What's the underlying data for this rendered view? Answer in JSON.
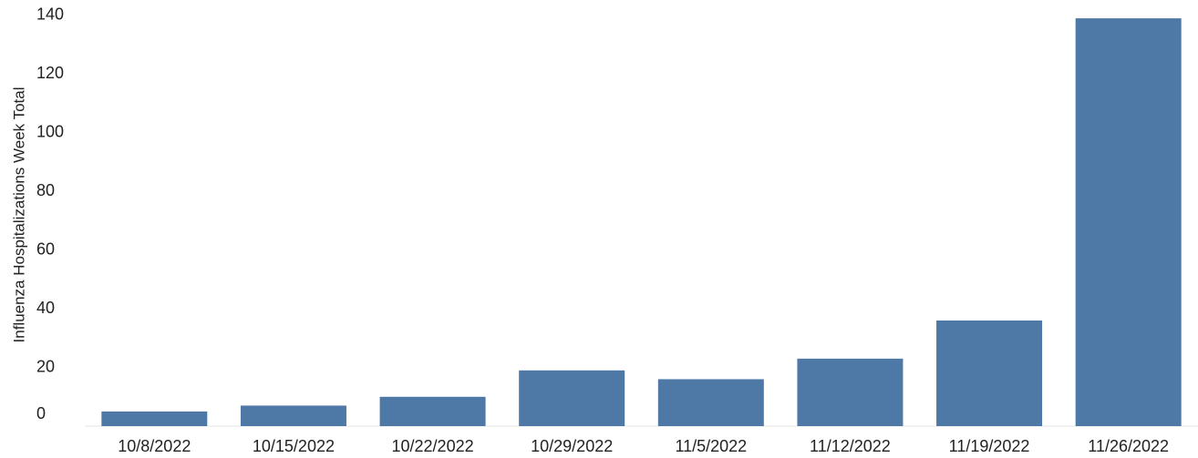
{
  "chart_data": {
    "type": "bar",
    "y_axis_label": "Influenza Hospitalizations Week Total",
    "categories": [
      "10/8/2022",
      "10/15/2022",
      "10/22/2022",
      "10/29/2022",
      "11/5/2022",
      "11/12/2022",
      "11/19/2022",
      "11/26/2022"
    ],
    "values": [
      5,
      7,
      10,
      19,
      16,
      23,
      36,
      139
    ],
    "color": "#4e79a7",
    "ylim": [
      0,
      144
    ],
    "yticks": [
      0,
      20,
      40,
      60,
      80,
      100,
      120,
      140
    ],
    "grid": false
  }
}
